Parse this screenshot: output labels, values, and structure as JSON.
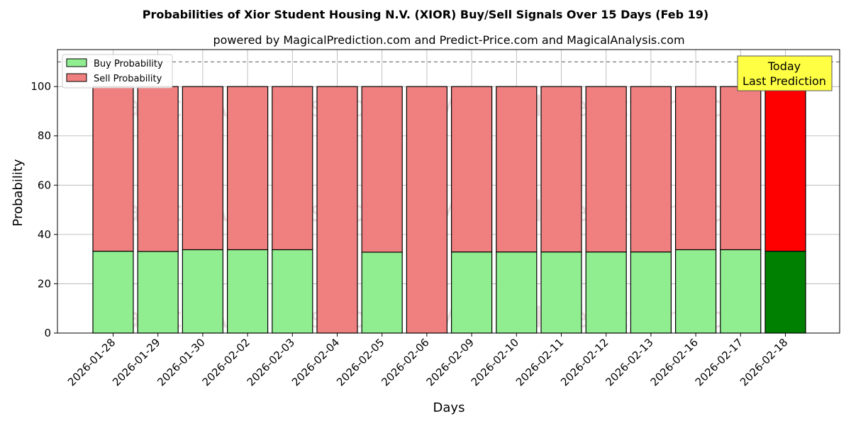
{
  "chart_data": {
    "type": "bar",
    "title": "Probabilities of Xior Student Housing N.V. (XIOR) Buy/Sell Signals Over 15 Days (Feb 19)",
    "subtitle": "powered by MagicalPrediction.com and Predict-Price.com and MagicalAnalysis.com",
    "xlabel": "Days",
    "ylabel": "Probability",
    "ylim": [
      0,
      115
    ],
    "yticks": [
      0,
      20,
      40,
      60,
      80,
      100
    ],
    "grid": true,
    "legend_position": "top-left",
    "reference_line": 110,
    "categories": [
      "2026-01-28",
      "2026-01-29",
      "2026-01-30",
      "2026-02-02",
      "2026-02-03",
      "2026-02-04",
      "2026-02-05",
      "2026-02-06",
      "2026-02-09",
      "2026-02-10",
      "2026-02-11",
      "2026-02-12",
      "2026-02-13",
      "2026-02-16",
      "2026-02-17",
      "2026-02-18"
    ],
    "series": [
      {
        "name": "Buy Probability",
        "color": "#90ee90",
        "highlight_color": "#008000",
        "values": [
          33.2,
          33.1,
          33.8,
          33.8,
          33.8,
          0,
          32.8,
          0,
          32.9,
          32.9,
          32.9,
          32.9,
          32.9,
          33.8,
          33.8,
          33.2
        ]
      },
      {
        "name": "Sell Probability",
        "color": "#f08080",
        "highlight_color": "#ff0000",
        "values": [
          66.8,
          66.9,
          66.2,
          66.2,
          66.2,
          100,
          67.2,
          100,
          67.1,
          67.1,
          67.1,
          67.1,
          67.1,
          66.2,
          66.2,
          66.8
        ]
      }
    ],
    "annotation": {
      "lines": [
        "Today",
        "Last Prediction"
      ],
      "bg": "#ffff44"
    },
    "watermarks": [
      "MagicalAnalysis.com",
      "MagicalPrediction.com"
    ]
  }
}
